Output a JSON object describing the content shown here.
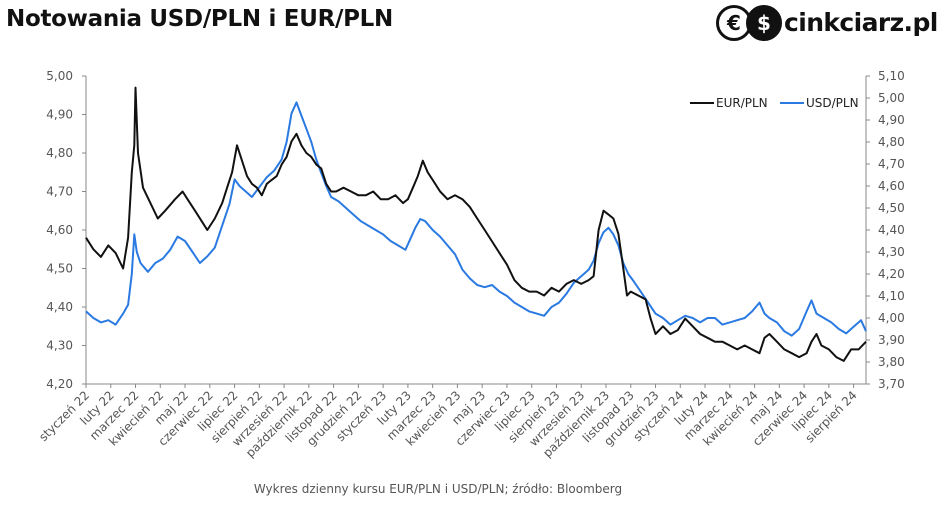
{
  "title": "Notowania USD/PLN i EUR/PLN",
  "logo": {
    "brand": "cinkciarz.pl",
    "coin_left": "€",
    "coin_right": "$"
  },
  "caption": "Wykres dzienny kursu EUR/PLN i USD/PLN; źródło: Bloomberg",
  "colors": {
    "eur": "#111111",
    "usd": "#2a7ae2",
    "axis": "#888888",
    "text": "#555555"
  },
  "chart_data": {
    "type": "line",
    "x_start": "2022-01",
    "x_end": "2024-08",
    "categories": [
      "styczeń 22",
      "luty 22",
      "marzec 22",
      "kwiecień 22",
      "maj 22",
      "czerwiec 22",
      "lipiec 22",
      "sierpień 22",
      "wrzesień 22",
      "październik 22",
      "listopad 22",
      "grudzień 22",
      "styczeń 23",
      "luty 23",
      "marzec 23",
      "kwiecień 23",
      "maj 23",
      "czerwiec 23",
      "lipiec 23",
      "sierpień 23",
      "wrzesień 23",
      "październik 23",
      "listopad 23",
      "grudzień 23",
      "styczeń 24",
      "luty 24",
      "marzec 24",
      "kwiecień 24",
      "maj 24",
      "czerwiec 24",
      "lipiec 24",
      "sierpień 24"
    ],
    "y_left": {
      "min": 4.2,
      "max": 5.0,
      "step": 0.1,
      "ticks": [
        "4,20",
        "4,30",
        "4,40",
        "4,50",
        "4,60",
        "4,70",
        "4,80",
        "4,90",
        "5,00"
      ]
    },
    "y_right": {
      "min": 3.7,
      "max": 5.1,
      "step": 0.1,
      "ticks": [
        "3,70",
        "3,80",
        "3,90",
        "4,00",
        "4,10",
        "4,20",
        "4,30",
        "4,40",
        "4,50",
        "4,60",
        "4,70",
        "4,80",
        "4,90",
        "5,00",
        "5,10"
      ]
    },
    "legend_position": "top-right",
    "grid": false,
    "series": [
      {
        "name": "EUR/PLN",
        "axis": "left",
        "points": [
          [
            0,
            4.58
          ],
          [
            0.3,
            4.55
          ],
          [
            0.6,
            4.53
          ],
          [
            0.9,
            4.56
          ],
          [
            1.2,
            4.54
          ],
          [
            1.5,
            4.5
          ],
          [
            1.7,
            4.58
          ],
          [
            1.85,
            4.75
          ],
          [
            1.95,
            4.82
          ],
          [
            2.0,
            4.97
          ],
          [
            2.1,
            4.8
          ],
          [
            2.3,
            4.71
          ],
          [
            2.6,
            4.67
          ],
          [
            2.9,
            4.63
          ],
          [
            3.2,
            4.65
          ],
          [
            3.6,
            4.68
          ],
          [
            3.9,
            4.7
          ],
          [
            4.1,
            4.68
          ],
          [
            4.4,
            4.65
          ],
          [
            4.7,
            4.62
          ],
          [
            4.9,
            4.6
          ],
          [
            5.2,
            4.63
          ],
          [
            5.5,
            4.67
          ],
          [
            5.7,
            4.71
          ],
          [
            5.9,
            4.75
          ],
          [
            6.1,
            4.82
          ],
          [
            6.3,
            4.78
          ],
          [
            6.5,
            4.74
          ],
          [
            6.7,
            4.72
          ],
          [
            6.9,
            4.71
          ],
          [
            7.1,
            4.69
          ],
          [
            7.3,
            4.72
          ],
          [
            7.5,
            4.73
          ],
          [
            7.7,
            4.74
          ],
          [
            7.9,
            4.77
          ],
          [
            8.1,
            4.79
          ],
          [
            8.3,
            4.83
          ],
          [
            8.5,
            4.85
          ],
          [
            8.7,
            4.82
          ],
          [
            8.9,
            4.8
          ],
          [
            9.1,
            4.79
          ],
          [
            9.3,
            4.77
          ],
          [
            9.5,
            4.76
          ],
          [
            9.7,
            4.72
          ],
          [
            9.9,
            4.7
          ],
          [
            10.1,
            4.7
          ],
          [
            10.4,
            4.71
          ],
          [
            10.7,
            4.7
          ],
          [
            11.0,
            4.69
          ],
          [
            11.3,
            4.69
          ],
          [
            11.6,
            4.7
          ],
          [
            11.9,
            4.68
          ],
          [
            12.2,
            4.68
          ],
          [
            12.5,
            4.69
          ],
          [
            12.8,
            4.67
          ],
          [
            13.0,
            4.68
          ],
          [
            13.2,
            4.71
          ],
          [
            13.4,
            4.74
          ],
          [
            13.6,
            4.78
          ],
          [
            13.8,
            4.75
          ],
          [
            14.0,
            4.73
          ],
          [
            14.3,
            4.7
          ],
          [
            14.6,
            4.68
          ],
          [
            14.9,
            4.69
          ],
          [
            15.2,
            4.68
          ],
          [
            15.5,
            4.66
          ],
          [
            15.8,
            4.63
          ],
          [
            16.1,
            4.6
          ],
          [
            16.4,
            4.57
          ],
          [
            16.7,
            4.54
          ],
          [
            17.0,
            4.51
          ],
          [
            17.3,
            4.47
          ],
          [
            17.6,
            4.45
          ],
          [
            17.9,
            4.44
          ],
          [
            18.2,
            4.44
          ],
          [
            18.5,
            4.43
          ],
          [
            18.8,
            4.45
          ],
          [
            19.1,
            4.44
          ],
          [
            19.4,
            4.46
          ],
          [
            19.7,
            4.47
          ],
          [
            20.0,
            4.46
          ],
          [
            20.3,
            4.47
          ],
          [
            20.5,
            4.48
          ],
          [
            20.7,
            4.6
          ],
          [
            20.9,
            4.65
          ],
          [
            21.1,
            4.64
          ],
          [
            21.3,
            4.63
          ],
          [
            21.5,
            4.59
          ],
          [
            21.7,
            4.5
          ],
          [
            21.85,
            4.43
          ],
          [
            22.0,
            4.44
          ],
          [
            22.3,
            4.43
          ],
          [
            22.6,
            4.42
          ],
          [
            22.8,
            4.37
          ],
          [
            23.0,
            4.33
          ],
          [
            23.3,
            4.35
          ],
          [
            23.6,
            4.33
          ],
          [
            23.9,
            4.34
          ],
          [
            24.2,
            4.37
          ],
          [
            24.5,
            4.35
          ],
          [
            24.8,
            4.33
          ],
          [
            25.1,
            4.32
          ],
          [
            25.4,
            4.31
          ],
          [
            25.7,
            4.31
          ],
          [
            26.0,
            4.3
          ],
          [
            26.3,
            4.29
          ],
          [
            26.6,
            4.3
          ],
          [
            26.9,
            4.29
          ],
          [
            27.2,
            4.28
          ],
          [
            27.4,
            4.32
          ],
          [
            27.6,
            4.33
          ],
          [
            27.9,
            4.31
          ],
          [
            28.2,
            4.29
          ],
          [
            28.5,
            4.28
          ],
          [
            28.8,
            4.27
          ],
          [
            29.1,
            4.28
          ],
          [
            29.3,
            4.31
          ],
          [
            29.5,
            4.33
          ],
          [
            29.7,
            4.3
          ],
          [
            30.0,
            4.29
          ],
          [
            30.3,
            4.27
          ],
          [
            30.6,
            4.26
          ],
          [
            30.9,
            4.29
          ],
          [
            31.2,
            4.29
          ],
          [
            31.5,
            4.31
          ]
        ]
      },
      {
        "name": "USD/PLN",
        "axis": "right",
        "points": [
          [
            0,
            4.03
          ],
          [
            0.3,
            4.0
          ],
          [
            0.6,
            3.98
          ],
          [
            0.9,
            3.99
          ],
          [
            1.2,
            3.97
          ],
          [
            1.5,
            4.02
          ],
          [
            1.7,
            4.06
          ],
          [
            1.85,
            4.2
          ],
          [
            1.95,
            4.38
          ],
          [
            2.05,
            4.3
          ],
          [
            2.2,
            4.25
          ],
          [
            2.5,
            4.21
          ],
          [
            2.8,
            4.25
          ],
          [
            3.1,
            4.27
          ],
          [
            3.4,
            4.31
          ],
          [
            3.7,
            4.37
          ],
          [
            4.0,
            4.35
          ],
          [
            4.3,
            4.3
          ],
          [
            4.6,
            4.25
          ],
          [
            4.9,
            4.28
          ],
          [
            5.2,
            4.32
          ],
          [
            5.5,
            4.42
          ],
          [
            5.8,
            4.52
          ],
          [
            6.0,
            4.63
          ],
          [
            6.2,
            4.6
          ],
          [
            6.5,
            4.57
          ],
          [
            6.7,
            4.55
          ],
          [
            6.9,
            4.58
          ],
          [
            7.1,
            4.61
          ],
          [
            7.3,
            4.64
          ],
          [
            7.6,
            4.67
          ],
          [
            7.9,
            4.72
          ],
          [
            8.1,
            4.8
          ],
          [
            8.3,
            4.93
          ],
          [
            8.5,
            4.98
          ],
          [
            8.7,
            4.92
          ],
          [
            8.9,
            4.86
          ],
          [
            9.1,
            4.8
          ],
          [
            9.3,
            4.72
          ],
          [
            9.5,
            4.66
          ],
          [
            9.7,
            4.6
          ],
          [
            9.9,
            4.55
          ],
          [
            10.2,
            4.53
          ],
          [
            10.5,
            4.5
          ],
          [
            10.8,
            4.47
          ],
          [
            11.1,
            4.44
          ],
          [
            11.4,
            4.42
          ],
          [
            11.7,
            4.4
          ],
          [
            12.0,
            4.38
          ],
          [
            12.3,
            4.35
          ],
          [
            12.6,
            4.33
          ],
          [
            12.9,
            4.31
          ],
          [
            13.1,
            4.36
          ],
          [
            13.3,
            4.41
          ],
          [
            13.5,
            4.45
          ],
          [
            13.7,
            4.44
          ],
          [
            14.0,
            4.4
          ],
          [
            14.3,
            4.37
          ],
          [
            14.6,
            4.33
          ],
          [
            14.9,
            4.29
          ],
          [
            15.2,
            4.22
          ],
          [
            15.5,
            4.18
          ],
          [
            15.8,
            4.15
          ],
          [
            16.1,
            4.14
          ],
          [
            16.4,
            4.15
          ],
          [
            16.7,
            4.12
          ],
          [
            17.0,
            4.1
          ],
          [
            17.3,
            4.07
          ],
          [
            17.6,
            4.05
          ],
          [
            17.9,
            4.03
          ],
          [
            18.2,
            4.02
          ],
          [
            18.5,
            4.01
          ],
          [
            18.8,
            4.05
          ],
          [
            19.1,
            4.07
          ],
          [
            19.4,
            4.11
          ],
          [
            19.7,
            4.16
          ],
          [
            20.0,
            4.19
          ],
          [
            20.3,
            4.22
          ],
          [
            20.5,
            4.26
          ],
          [
            20.7,
            4.34
          ],
          [
            20.9,
            4.39
          ],
          [
            21.1,
            4.41
          ],
          [
            21.3,
            4.38
          ],
          [
            21.5,
            4.33
          ],
          [
            21.7,
            4.25
          ],
          [
            21.9,
            4.2
          ],
          [
            22.1,
            4.17
          ],
          [
            22.4,
            4.12
          ],
          [
            22.7,
            4.07
          ],
          [
            23.0,
            4.02
          ],
          [
            23.3,
            4.0
          ],
          [
            23.6,
            3.97
          ],
          [
            23.9,
            3.99
          ],
          [
            24.2,
            4.01
          ],
          [
            24.5,
            4.0
          ],
          [
            24.8,
            3.98
          ],
          [
            25.1,
            4.0
          ],
          [
            25.4,
            4.0
          ],
          [
            25.7,
            3.97
          ],
          [
            26.0,
            3.98
          ],
          [
            26.3,
            3.99
          ],
          [
            26.6,
            4.0
          ],
          [
            26.9,
            4.03
          ],
          [
            27.2,
            4.07
          ],
          [
            27.4,
            4.02
          ],
          [
            27.6,
            4.0
          ],
          [
            27.9,
            3.98
          ],
          [
            28.2,
            3.94
          ],
          [
            28.5,
            3.92
          ],
          [
            28.8,
            3.95
          ],
          [
            29.1,
            4.03
          ],
          [
            29.3,
            4.08
          ],
          [
            29.5,
            4.02
          ],
          [
            29.8,
            4.0
          ],
          [
            30.1,
            3.98
          ],
          [
            30.4,
            3.95
          ],
          [
            30.7,
            3.93
          ],
          [
            31.0,
            3.96
          ],
          [
            31.3,
            3.99
          ],
          [
            31.5,
            3.94
          ]
        ]
      }
    ]
  }
}
